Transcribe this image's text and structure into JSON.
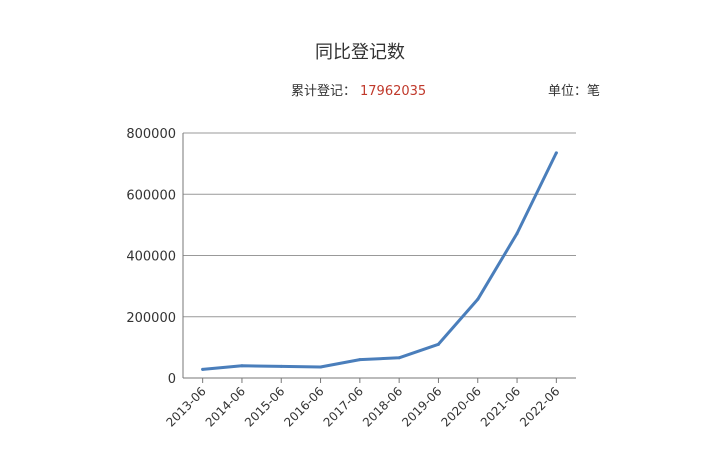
{
  "header": {
    "title": "同比登记数",
    "summary_label": "累计登记：",
    "summary_value": "17962035",
    "unit_label": "单位：笔"
  },
  "colors": {
    "line": "#4a7ebb",
    "summary_value": "#c0392b",
    "grid": "#999999"
  },
  "chart_data": {
    "type": "line",
    "title": "同比登记数",
    "categories": [
      "2013-06",
      "2014-06",
      "2015-06",
      "2016-06",
      "2017-06",
      "2018-06",
      "2019-06",
      "2020-06",
      "2021-06",
      "2022-06"
    ],
    "series": [
      {
        "values": [
          28000,
          40000,
          38000,
          36000,
          60000,
          66000,
          110000,
          257000,
          472000,
          735000
        ]
      }
    ],
    "y_ticks": [
      0,
      200000,
      400000,
      600000,
      800000
    ],
    "ylim": [
      0,
      800000
    ],
    "grid": true,
    "legend": "none"
  }
}
